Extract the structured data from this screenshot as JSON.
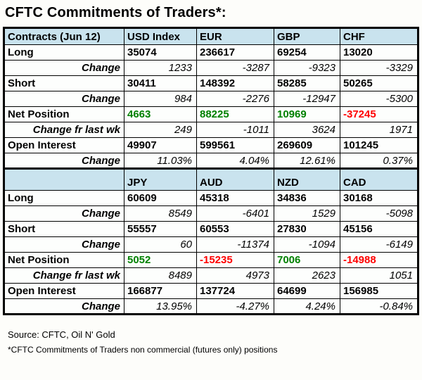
{
  "colors": {
    "positive": "#008000",
    "negative": "#ff0000",
    "header_bg": "#c9e3ee",
    "label_bg": "#dce3ee"
  },
  "chart_data": {
    "type": "table",
    "title": "CFTC Commitments of Traders*:",
    "sections": [
      {
        "columns": [
          "Contracts (Jun 12)",
          "USD Index",
          "EUR",
          "GBP",
          "CHF"
        ],
        "rows": [
          {
            "label": "Long",
            "type": "data",
            "values": [
              "35074",
              "236617",
              "69254",
              "13020"
            ]
          },
          {
            "label": "Change",
            "type": "change",
            "values": [
              "1233",
              "-3287",
              "-9323",
              "-3329"
            ]
          },
          {
            "label": "Short",
            "type": "data",
            "values": [
              "30411",
              "148392",
              "58285",
              "50265"
            ]
          },
          {
            "label": "Change",
            "type": "change",
            "values": [
              "984",
              "-2276",
              "-12947",
              "-5300"
            ]
          },
          {
            "label": "Net Position",
            "type": "data",
            "values": [
              "4663",
              "88225",
              "10969",
              "-37245"
            ],
            "value_colors": [
              "green",
              "green",
              "green",
              "red"
            ]
          },
          {
            "label": "Change fr last wk",
            "type": "change",
            "values": [
              "249",
              "-1011",
              "3624",
              "1971"
            ]
          },
          {
            "label": "Open Interest",
            "type": "data",
            "values": [
              "49907",
              "599561",
              "269609",
              "101245"
            ]
          },
          {
            "label": "Change",
            "type": "change",
            "values": [
              "11.03%",
              "4.04%",
              "12.61%",
              "0.37%"
            ]
          }
        ]
      },
      {
        "columns": [
          "",
          "JPY",
          "AUD",
          "NZD",
          "CAD"
        ],
        "rows": [
          {
            "label": "Long",
            "type": "data",
            "values": [
              "60609",
              "45318",
              "34836",
              "30168"
            ]
          },
          {
            "label": "Change",
            "type": "change",
            "values": [
              "8549",
              "-6401",
              "1529",
              "-5098"
            ]
          },
          {
            "label": "Short",
            "type": "data",
            "values": [
              "55557",
              "60553",
              "27830",
              "45156"
            ]
          },
          {
            "label": "Change",
            "type": "change",
            "values": [
              "60",
              "-11374",
              "-1094",
              "-6149"
            ]
          },
          {
            "label": "Net Position",
            "type": "data",
            "values": [
              "5052",
              "-15235",
              "7006",
              "-14988"
            ],
            "value_colors": [
              "green",
              "red",
              "green",
              "red"
            ]
          },
          {
            "label": "Change fr last wk",
            "type": "change",
            "values": [
              "8489",
              "4973",
              "2623",
              "1051"
            ]
          },
          {
            "label": "Open Interest",
            "type": "data",
            "values": [
              "166877",
              "137724",
              "64699",
              "156985"
            ]
          },
          {
            "label": "Change",
            "type": "change",
            "values": [
              "13.95%",
              "-4.27%",
              "4.24%",
              "-0.84%"
            ]
          }
        ]
      }
    ]
  },
  "footer": {
    "source": "Source: CFTC, Oil N' Gold",
    "note": "*CFTC Commitments of Traders non commercial (futures only) positions"
  }
}
